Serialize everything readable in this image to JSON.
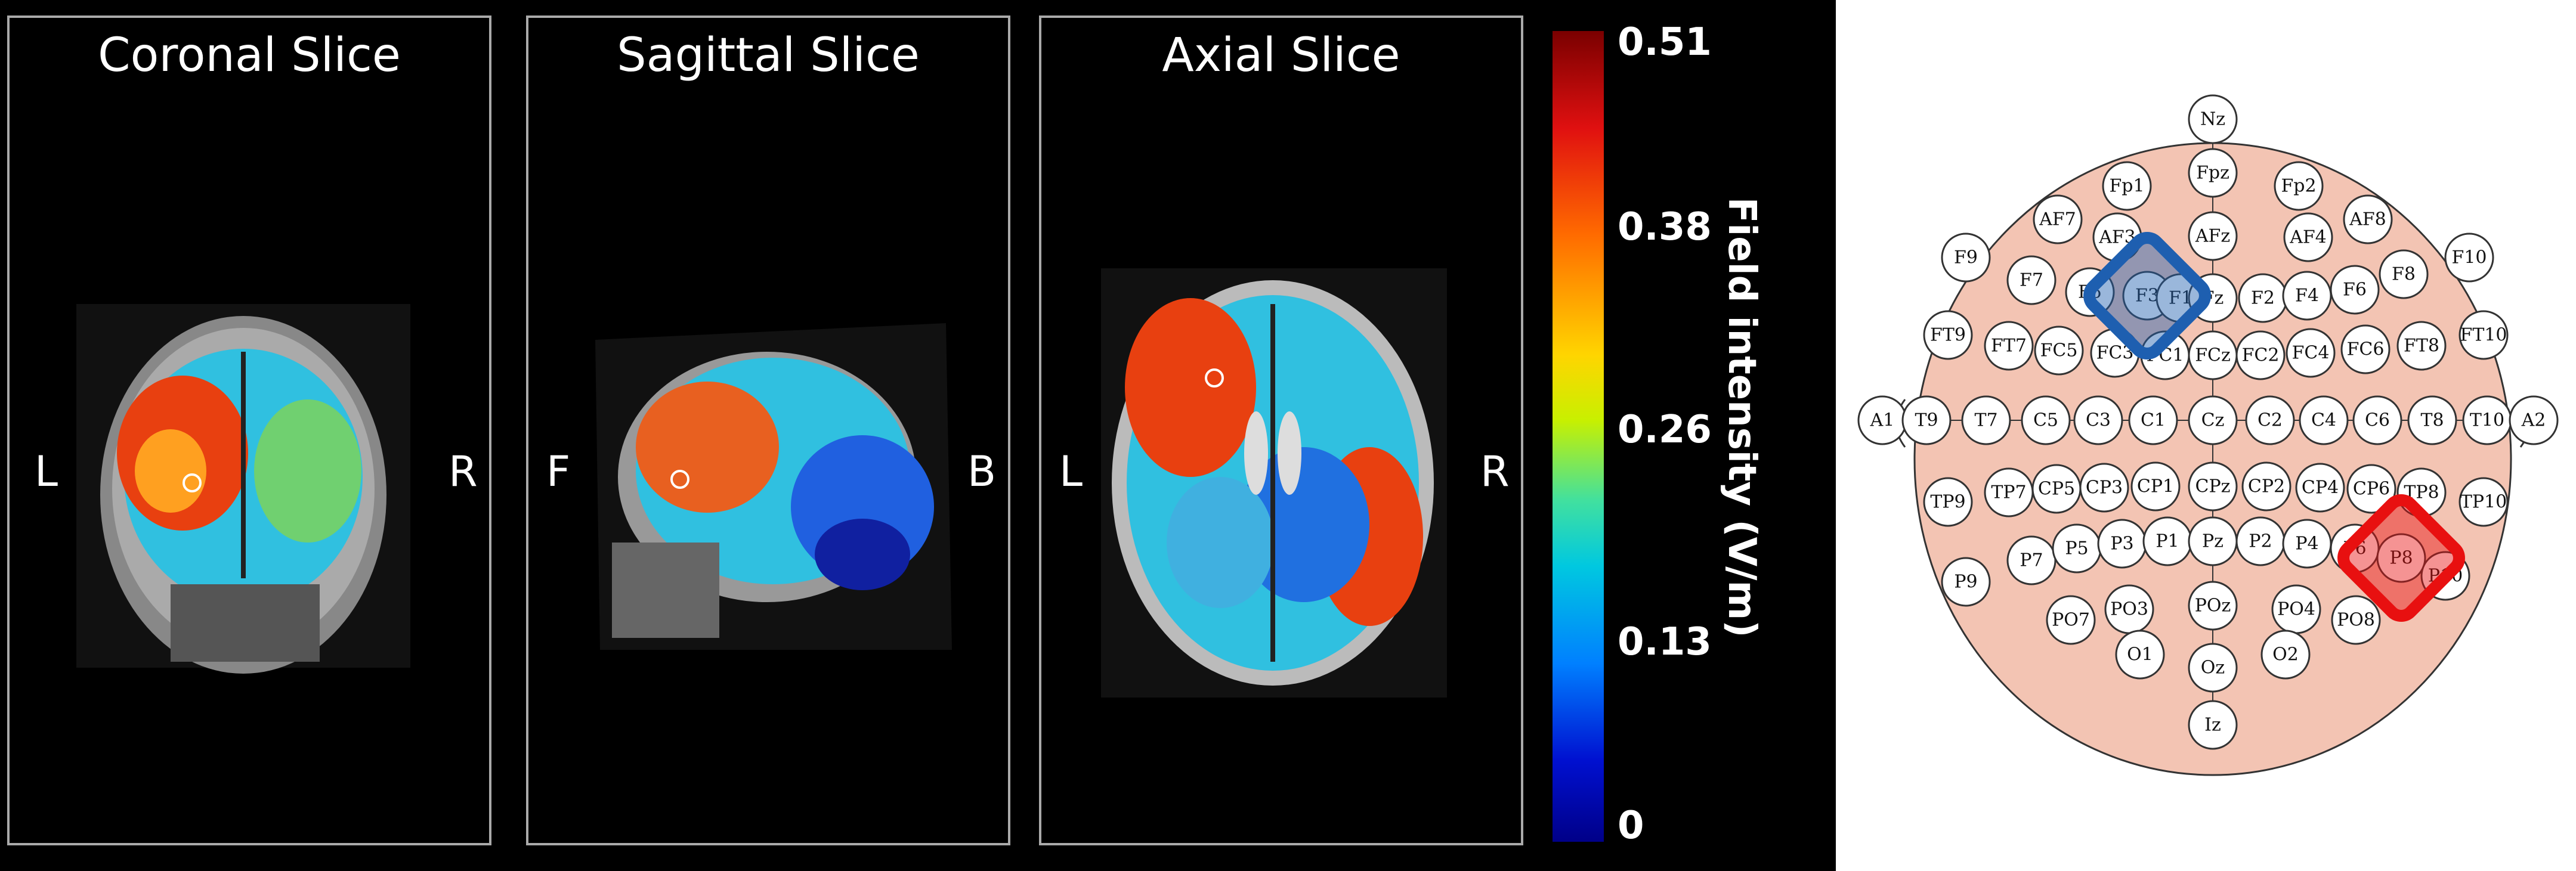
{
  "slices": [
    {
      "title": "Coronal Slice",
      "left_label": "L",
      "right_label": "R"
    },
    {
      "title": "Sagittal Slice",
      "left_label": "F",
      "right_label": "B"
    },
    {
      "title": "Axial Slice",
      "left_label": "L",
      "right_label": "R"
    }
  ],
  "colorbar": {
    "label": "Field intensity (V/m)",
    "ticks": [
      "0.51",
      "0.38",
      "0.26",
      "0.13",
      "0"
    ],
    "colors": [
      "#7a0000",
      "#e01010",
      "#ff6a00",
      "#ffd500",
      "#40e0a0",
      "#00c8e0",
      "#0080ff",
      "#0010d0",
      "#000088"
    ]
  },
  "eeg": {
    "electrodes": [
      "Nz",
      "Fpz",
      "Fp1",
      "Fp2",
      "AF7",
      "AF3",
      "AFz",
      "AF4",
      "AF8",
      "F9",
      "F7",
      "F5",
      "F3",
      "F1",
      "Fz",
      "F2",
      "F4",
      "F6",
      "F8",
      "F10",
      "FT9",
      "FT7",
      "FC5",
      "FC3",
      "FC1",
      "FCz",
      "FC2",
      "FC4",
      "FC6",
      "FT8",
      "FT10",
      "A1",
      "T9",
      "T7",
      "C5",
      "C3",
      "C1",
      "Cz",
      "C2",
      "C4",
      "C6",
      "T8",
      "T10",
      "A2",
      "TP9",
      "TP7",
      "CP5",
      "CP3",
      "CP1",
      "CPz",
      "CP2",
      "CP4",
      "CP6",
      "TP8",
      "TP10",
      "P9",
      "P7",
      "P5",
      "P3",
      "P1",
      "Pz",
      "P2",
      "P4",
      "P6",
      "P8",
      "P10",
      "PO7",
      "PO3",
      "POz",
      "PO4",
      "PO8",
      "O1",
      "Oz",
      "O2",
      "Iz"
    ],
    "highlighted_blue": "F3",
    "highlighted_red": "P8",
    "colors": {
      "head": "#f3c4b3",
      "blue": "#1e5fb0",
      "red": "#e81010"
    }
  }
}
